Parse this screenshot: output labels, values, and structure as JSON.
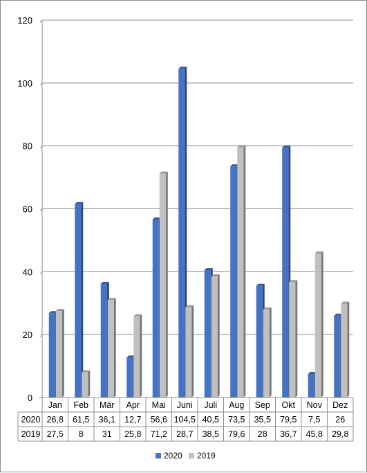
{
  "chart_data": {
    "type": "bar",
    "categories": [
      "Jan",
      "Feb",
      "Mär",
      "Apr",
      "Mai",
      "Juni",
      "Juli",
      "Aug",
      "Sep",
      "Okt",
      "Nov",
      "Dez"
    ],
    "series": [
      {
        "name": "2020",
        "values": [
          26.8,
          61.5,
          36.1,
          12.7,
          56.6,
          104.5,
          40.5,
          73.5,
          35.5,
          79.5,
          7.5,
          26
        ],
        "labels": [
          "26,8",
          "61,5",
          "36,1",
          "12,7",
          "56,6",
          "104,5",
          "40,5",
          "73,5",
          "35,5",
          "79,5",
          "7,5",
          "26"
        ],
        "color": "#4472c4"
      },
      {
        "name": "2019",
        "values": [
          27.5,
          8,
          31,
          25.8,
          71.2,
          28.7,
          38.5,
          79.6,
          28,
          36.7,
          45.8,
          29.8
        ],
        "labels": [
          "27,5",
          "8",
          "31",
          "25,8",
          "71,2",
          "28,7",
          "38,5",
          "79,6",
          "28",
          "36,7",
          "45,8",
          "29,8"
        ],
        "color": "#c0c0c0"
      }
    ],
    "ylim": [
      0,
      120
    ],
    "yticks": [
      "0",
      "20",
      "40",
      "60",
      "80",
      "100",
      "120"
    ],
    "title": "",
    "xlabel": "",
    "ylabel": "",
    "grid": true,
    "data_table": true,
    "legend_position": "bottom"
  }
}
